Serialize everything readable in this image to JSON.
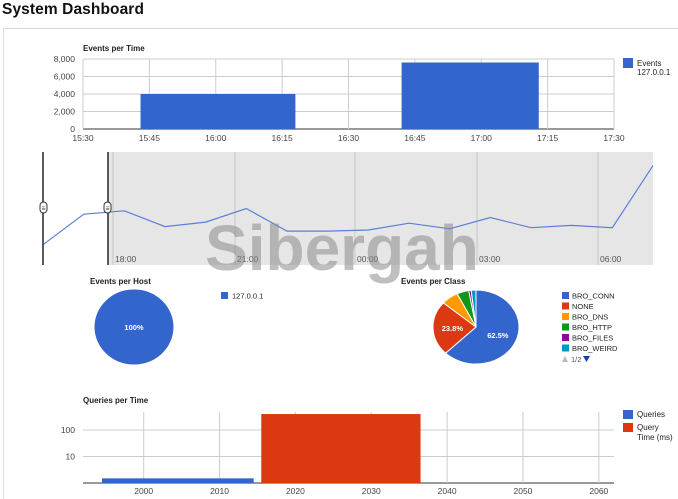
{
  "page_title": "System Dashboard",
  "watermark": "Sibergah",
  "colors": {
    "blue": "#3366cc",
    "red": "#dc3912",
    "orange": "#ff9900",
    "green": "#109618",
    "purple": "#990099",
    "teal": "#0099c6"
  },
  "chart_data": [
    {
      "id": "events-per-time",
      "type": "bar",
      "title": "Events per Time",
      "xlabel": "",
      "ylabel": "",
      "x_ticks": [
        "15:30",
        "15:45",
        "16:00",
        "16:15",
        "16:30",
        "16:45",
        "17:00",
        "17:15",
        "17:30"
      ],
      "y_ticks": [
        "8,000",
        "6,000",
        "4,000",
        "2,000",
        "0"
      ],
      "ylim": [
        0,
        8000
      ],
      "grid": true,
      "legend_position": "right",
      "series": [
        {
          "name": "Events",
          "name_line2": "127.0.0.1",
          "color": "#3366cc",
          "bars": [
            {
              "start": "15:43",
              "end": "16:18",
              "value": 4000
            },
            {
              "start": "16:42",
              "end": "17:13",
              "value": 7600
            }
          ]
        }
      ]
    },
    {
      "id": "timeline-navigator",
      "type": "line",
      "x_ticks": [
        "18:00",
        "21:00",
        "00:00",
        "03:00",
        "06:00"
      ],
      "handle_glyph": "≡",
      "values": [
        0.18,
        0.45,
        0.48,
        0.34,
        0.38,
        0.5,
        0.3,
        0.3,
        0.31,
        0.37,
        0.32,
        0.42,
        0.33,
        0.35,
        0.33,
        0.88
      ]
    },
    {
      "id": "events-per-host",
      "type": "pie",
      "title": "Events per Host",
      "slices": [
        {
          "label": "127.0.0.1",
          "value": 100,
          "color": "#3366cc",
          "text": "100%"
        }
      ]
    },
    {
      "id": "events-per-class",
      "type": "pie",
      "title": "Events per Class",
      "pager": "1/2",
      "slices": [
        {
          "label": "BRO_CONN",
          "value": 62.5,
          "color": "#3366cc",
          "text": "62.5%"
        },
        {
          "label": "NONE",
          "value": 23.8,
          "color": "#dc3912",
          "text": "23.8%"
        },
        {
          "label": "BRO_DNS",
          "value": 6.5,
          "color": "#ff9900",
          "text": ""
        },
        {
          "label": "BRO_HTTP",
          "value": 4.5,
          "color": "#109618",
          "text": ""
        },
        {
          "label": "BRO_FILES",
          "value": 0.9,
          "color": "#990099",
          "text": ""
        },
        {
          "label": "BRO_WEIRD",
          "value": 1.8,
          "color": "#0099c6",
          "text": ""
        }
      ]
    },
    {
      "id": "queries-per-time",
      "type": "bar",
      "title": "Queries per Time",
      "xlabel": "",
      "ylabel": "",
      "x_ticks": [
        "2000",
        "2010",
        "2020",
        "2030",
        "2040",
        "2050",
        "2060"
      ],
      "y_ticks": [
        "100",
        "10"
      ],
      "y_scale": "log",
      "grid": true,
      "legend_position": "right",
      "series": [
        {
          "name": "Queries",
          "color": "#3366cc",
          "bars": [
            {
              "start": 1994.5,
              "end": 2014.5,
              "value": 1.5
            }
          ]
        },
        {
          "name": "Query",
          "name_line2": "Time (ms)",
          "color": "#dc3912",
          "bars": [
            {
              "start": 2015.5,
              "end": 2036.5,
              "value": 400
            }
          ]
        }
      ]
    }
  ]
}
